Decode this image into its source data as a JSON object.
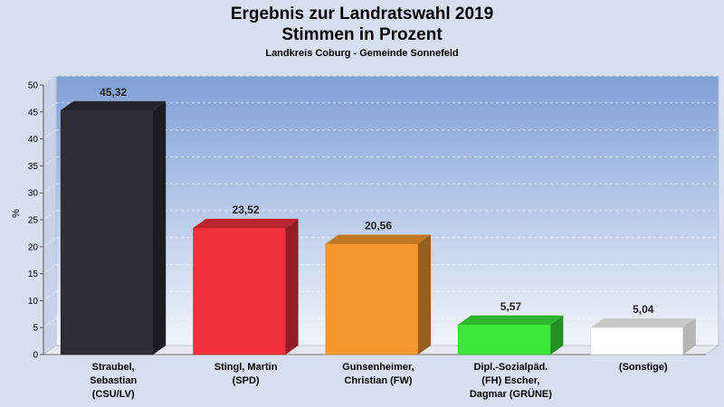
{
  "title": [
    "Ergebnis zur Landratswahl 2019",
    "Stimmen in Prozent"
  ],
  "subtitle": "Landkreis Coburg - Gemeinde Sonnefeld",
  "chart_data": {
    "type": "bar",
    "categories": [
      [
        "Straubel,",
        "Sebastian",
        "(CSU/LV)"
      ],
      [
        "Stingl, Martin",
        "(SPD)"
      ],
      [
        "Gunsenheimer,",
        "Christian (FW)"
      ],
      [
        "Dipl.-Sozialpäd.",
        "(FH) Escher,",
        "Dagmar (GRÜNE)"
      ],
      [
        "(Sonstige)"
      ]
    ],
    "values": [
      45.32,
      23.52,
      20.56,
      5.57,
      5.04
    ],
    "value_labels": [
      "45,32",
      "23,52",
      "20,56",
      "5,57",
      "5,04"
    ],
    "colors": [
      "#2e2f36",
      "#f0303a",
      "#f5982e",
      "#3ce83a",
      "#ffffff"
    ],
    "ylabel": "%",
    "ylim": [
      0,
      50
    ],
    "yticks": [
      0,
      5,
      10,
      15,
      20,
      25,
      30,
      35,
      40,
      45,
      50
    ],
    "grid": true
  }
}
